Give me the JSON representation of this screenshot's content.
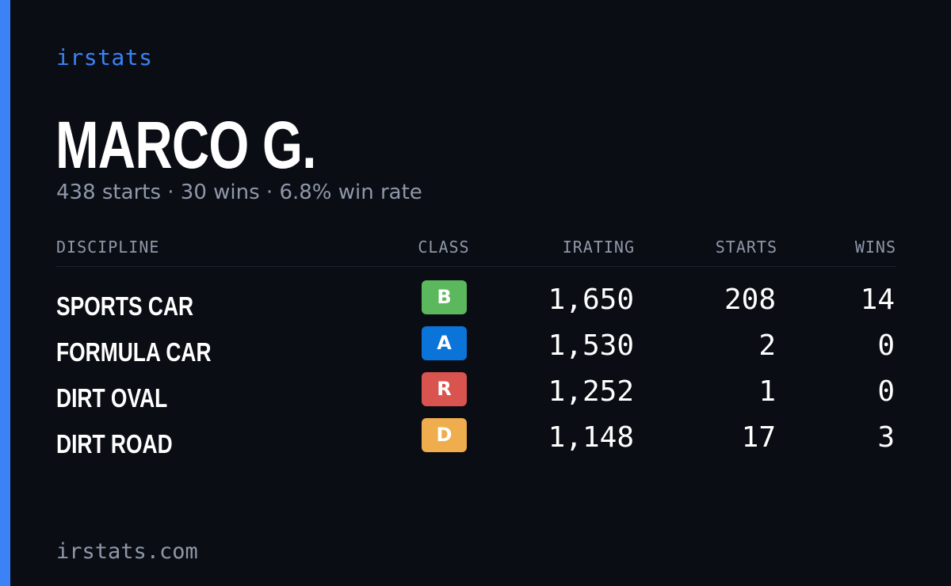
{
  "brand": "irstats",
  "driver": {
    "name": "MARCO G.",
    "summary": "438 starts · 30 wins · 6.8% win rate"
  },
  "table": {
    "headers": {
      "discipline": "DISCIPLINE",
      "class": "CLASS",
      "irating": "IRATING",
      "starts": "STARTS",
      "wins": "WINS"
    },
    "rows": [
      {
        "discipline": "SPORTS CAR",
        "class": "B",
        "class_color": "#5cb85c",
        "irating": "1,650",
        "starts": "208",
        "wins": "14"
      },
      {
        "discipline": "FORMULA CAR",
        "class": "A",
        "class_color": "#0b74d9",
        "irating": "1,530",
        "starts": "2",
        "wins": "0"
      },
      {
        "discipline": "DIRT OVAL",
        "class": "R",
        "class_color": "#d9534f",
        "irating": "1,252",
        "starts": "1",
        "wins": "0"
      },
      {
        "discipline": "DIRT ROAD",
        "class": "D",
        "class_color": "#f0ad4e",
        "irating": "1,148",
        "starts": "17",
        "wins": "3"
      }
    ]
  },
  "footer": "irstats.com",
  "colors": {
    "background": "#0a0d14",
    "accent": "#3b82f6",
    "muted_text": "#8f98a8"
  }
}
